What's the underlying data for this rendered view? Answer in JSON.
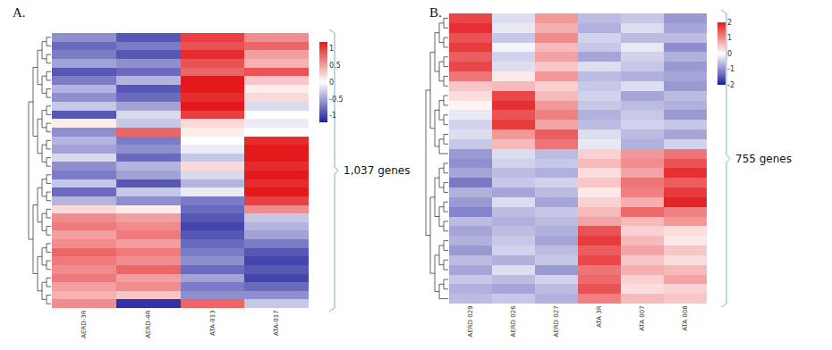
{
  "chart_data": [
    {
      "type": "heatmap",
      "panel": "A.",
      "annotations": [
        "1,037 genes"
      ],
      "columns": [
        "AERD-3R",
        "AERD-4R",
        "ATA-013",
        "ATA-017"
      ],
      "zlim": [
        -1.2,
        1.2
      ],
      "zticks": [
        -1,
        -0.5,
        0,
        0.5,
        1
      ],
      "cells": [
        [
          -0.6,
          -0.9,
          1.0,
          0.6
        ],
        [
          -0.8,
          -0.7,
          0.9,
          0.8
        ],
        [
          -0.7,
          -0.9,
          1.1,
          0.5
        ],
        [
          -0.5,
          -0.6,
          0.9,
          0.4
        ],
        [
          -0.9,
          -0.8,
          0.8,
          0.9
        ],
        [
          -0.7,
          -0.4,
          1.2,
          0.3
        ],
        [
          -0.4,
          -0.9,
          1.2,
          0.1
        ],
        [
          -0.6,
          -0.8,
          1.1,
          0.2
        ],
        [
          -0.3,
          -0.5,
          1.2,
          -0.2
        ],
        [
          -0.9,
          -0.2,
          1.0,
          0.0
        ],
        [
          0.1,
          -0.3,
          0.2,
          -0.1
        ],
        [
          -0.6,
          0.8,
          0.1,
          0.0
        ],
        [
          -0.4,
          -0.7,
          0.0,
          1.1
        ],
        [
          -0.5,
          -0.6,
          -0.1,
          1.2
        ],
        [
          -0.2,
          -0.8,
          -0.3,
          1.2
        ],
        [
          -0.6,
          -0.4,
          0.2,
          1.1
        ],
        [
          -0.7,
          -0.5,
          -0.2,
          1.2
        ],
        [
          -0.3,
          -0.9,
          -0.4,
          1.1
        ],
        [
          -0.8,
          -0.3,
          -0.1,
          1.2
        ],
        [
          -0.4,
          -0.6,
          -0.7,
          1.0
        ],
        [
          0.2,
          0.1,
          -0.8,
          0.6
        ],
        [
          0.6,
          0.5,
          -0.9,
          -0.3
        ],
        [
          0.7,
          0.6,
          -1.0,
          -0.4
        ],
        [
          0.5,
          0.7,
          -0.9,
          -0.5
        ],
        [
          0.6,
          0.5,
          -0.8,
          -0.7
        ],
        [
          0.8,
          0.7,
          -0.7,
          -0.9
        ],
        [
          0.7,
          0.6,
          -0.6,
          -1.0
        ],
        [
          0.6,
          0.8,
          -0.8,
          -0.9
        ],
        [
          0.7,
          0.5,
          -0.5,
          -1.0
        ],
        [
          0.5,
          0.6,
          -0.7,
          -0.8
        ],
        [
          0.4,
          0.3,
          -0.6,
          -0.6
        ],
        [
          0.6,
          -1.1,
          0.8,
          -0.3
        ]
      ]
    },
    {
      "type": "heatmap",
      "panel": "B.",
      "annotations": [
        "755 genes"
      ],
      "columns": [
        "AERD 029",
        "AERD 026",
        "AERD 027",
        "ATA 3R",
        "ATA 007",
        "ATA 008"
      ],
      "zlim": [
        -2,
        2
      ],
      "zticks": [
        -2,
        -1,
        0,
        1,
        2
      ],
      "cells": [
        [
          1.6,
          -0.3,
          0.9,
          -0.6,
          -0.5,
          -0.9
        ],
        [
          1.8,
          -0.2,
          0.7,
          -0.7,
          -0.3,
          -0.8
        ],
        [
          1.5,
          -0.5,
          1.0,
          -0.4,
          -0.6,
          -0.6
        ],
        [
          1.7,
          -0.1,
          0.6,
          -0.5,
          -0.2,
          -1.0
        ],
        [
          1.4,
          -0.4,
          0.8,
          -0.8,
          -0.4,
          -0.7
        ],
        [
          1.6,
          -0.3,
          0.5,
          -0.3,
          -0.5,
          -0.9
        ],
        [
          1.2,
          0.2,
          0.9,
          -0.6,
          -0.7,
          -0.8
        ],
        [
          0.5,
          0.6,
          0.4,
          -0.5,
          -0.3,
          -0.9
        ],
        [
          0.3,
          1.6,
          0.6,
          -0.4,
          -0.8,
          -0.6
        ],
        [
          0.1,
          1.8,
          0.9,
          -0.5,
          -0.6,
          -0.7
        ],
        [
          -0.2,
          1.5,
          1.1,
          -0.7,
          -0.5,
          -0.9
        ],
        [
          -0.4,
          1.7,
          0.8,
          -0.6,
          -0.4,
          -0.5
        ],
        [
          -0.3,
          0.9,
          1.4,
          -0.3,
          -0.6,
          -0.8
        ],
        [
          -0.5,
          0.6,
          1.2,
          -0.2,
          -0.7,
          -0.4
        ],
        [
          -0.9,
          -0.3,
          -0.6,
          0.4,
          0.9,
          1.2
        ],
        [
          -1.0,
          -0.4,
          -0.5,
          0.6,
          1.0,
          1.5
        ],
        [
          -0.8,
          -0.6,
          -0.7,
          0.3,
          0.8,
          1.8
        ],
        [
          -1.2,
          -0.5,
          -0.4,
          0.5,
          1.2,
          1.4
        ],
        [
          -0.7,
          -0.8,
          -0.6,
          0.2,
          1.1,
          1.7
        ],
        [
          -0.9,
          -0.3,
          -0.8,
          0.4,
          0.7,
          1.9
        ],
        [
          -1.1,
          -0.6,
          -0.5,
          0.6,
          1.3,
          1.1
        ],
        [
          -0.6,
          -0.7,
          -0.6,
          0.8,
          0.6,
          0.9
        ],
        [
          -0.8,
          -0.6,
          -0.7,
          1.5,
          0.4,
          0.3
        ],
        [
          -0.7,
          -0.5,
          -0.8,
          1.7,
          0.6,
          0.2
        ],
        [
          -0.9,
          -0.4,
          -0.6,
          1.4,
          0.8,
          0.5
        ],
        [
          -0.6,
          -0.7,
          -0.5,
          1.6,
          0.5,
          0.3
        ],
        [
          -0.8,
          -0.3,
          -0.9,
          1.2,
          0.7,
          0.6
        ],
        [
          -0.5,
          -0.6,
          -0.4,
          1.3,
          0.4,
          0.8
        ],
        [
          -0.7,
          -0.8,
          -0.6,
          1.5,
          0.3,
          0.4
        ],
        [
          -0.6,
          -0.5,
          -0.7,
          1.1,
          0.6,
          0.5
        ]
      ]
    }
  ]
}
